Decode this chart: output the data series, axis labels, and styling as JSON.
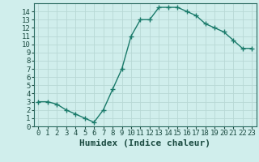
{
  "x": [
    0,
    1,
    2,
    3,
    4,
    5,
    6,
    7,
    8,
    9,
    10,
    11,
    12,
    13,
    14,
    15,
    16,
    17,
    18,
    19,
    20,
    21,
    22,
    23
  ],
  "y": [
    3.0,
    3.0,
    2.7,
    2.0,
    1.5,
    1.0,
    0.5,
    2.0,
    4.5,
    7.0,
    11.0,
    13.0,
    13.0,
    14.5,
    14.5,
    14.5,
    14.0,
    13.5,
    12.5,
    12.0,
    11.5,
    10.5,
    9.5,
    9.5
  ],
  "line_color": "#1a7a6a",
  "marker": "+",
  "marker_size": 4,
  "line_width": 1.0,
  "bg_color": "#d0eeec",
  "grid_color": "#b8d8d5",
  "xlabel": "Humidex (Indice chaleur)",
  "xlim": [
    -0.5,
    23.5
  ],
  "ylim": [
    0,
    15
  ],
  "xtick_labels": [
    "0",
    "1",
    "2",
    "3",
    "4",
    "5",
    "6",
    "7",
    "8",
    "9",
    "10",
    "11",
    "12",
    "13",
    "14",
    "15",
    "16",
    "17",
    "18",
    "19",
    "20",
    "21",
    "22",
    "23"
  ],
  "ytick_values": [
    0,
    1,
    2,
    3,
    4,
    5,
    6,
    7,
    8,
    9,
    10,
    11,
    12,
    13,
    14
  ],
  "tick_fontsize": 6.5,
  "xlabel_fontsize": 8,
  "label_color": "#1a4a40",
  "axis_color": "#2a6a60"
}
